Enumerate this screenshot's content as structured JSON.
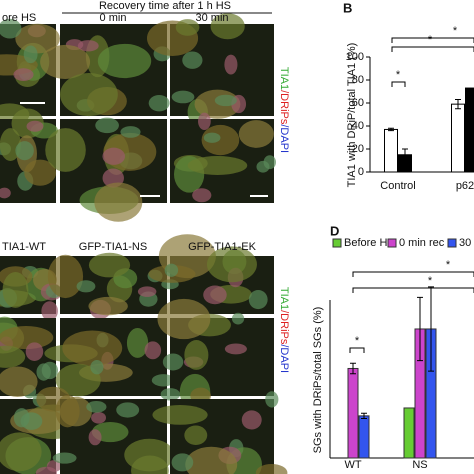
{
  "images": {
    "top_header": "Recovery time after 1 h HS",
    "top_labels": [
      "ore HS",
      "0 min",
      "30 min"
    ],
    "bottom_labels": [
      "TIA1-WT",
      "GFP-TIA1-NS",
      "GFP-TIA1-EK"
    ],
    "stain_label": [
      "TIA1",
      "/DRiPs",
      "/DAPI"
    ]
  },
  "chart_data": [
    {
      "type": "bar",
      "panel": "B",
      "ylabel": "TIA1 with DRiP/total TIA1 (%)",
      "categories": [
        "Control",
        "p62"
      ],
      "series": [
        {
          "color": "#ffffff",
          "values": [
            37,
            59
          ],
          "errors": [
            1,
            4
          ]
        },
        {
          "color": "#000000",
          "values": [
            15,
            73
          ],
          "errors": [
            5,
            null
          ]
        }
      ],
      "ylim": [
        0,
        100
      ],
      "yticks": [
        0,
        20,
        40,
        60,
        80,
        100
      ],
      "annotations": [
        "*",
        "*",
        "*"
      ]
    },
    {
      "type": "bar",
      "panel": "D",
      "ylabel": "SGs with DRiPs/total SGs (%)",
      "categories": [
        "WT",
        "NS"
      ],
      "series": [
        {
          "name": "Before HS",
          "color": "#66cc33",
          "values": [
            null,
            19
          ],
          "errors": [
            null,
            null
          ]
        },
        {
          "name": "0 min rec",
          "color": "#cc44cc",
          "values": [
            34,
            49
          ],
          "errors": [
            2,
            12
          ]
        },
        {
          "name": "30",
          "color": "#3355ee",
          "values": [
            16,
            49
          ],
          "errors": [
            1,
            16
          ]
        }
      ],
      "ylim": [
        0,
        60
      ],
      "annotations": [
        "*",
        "*",
        "*"
      ]
    }
  ]
}
